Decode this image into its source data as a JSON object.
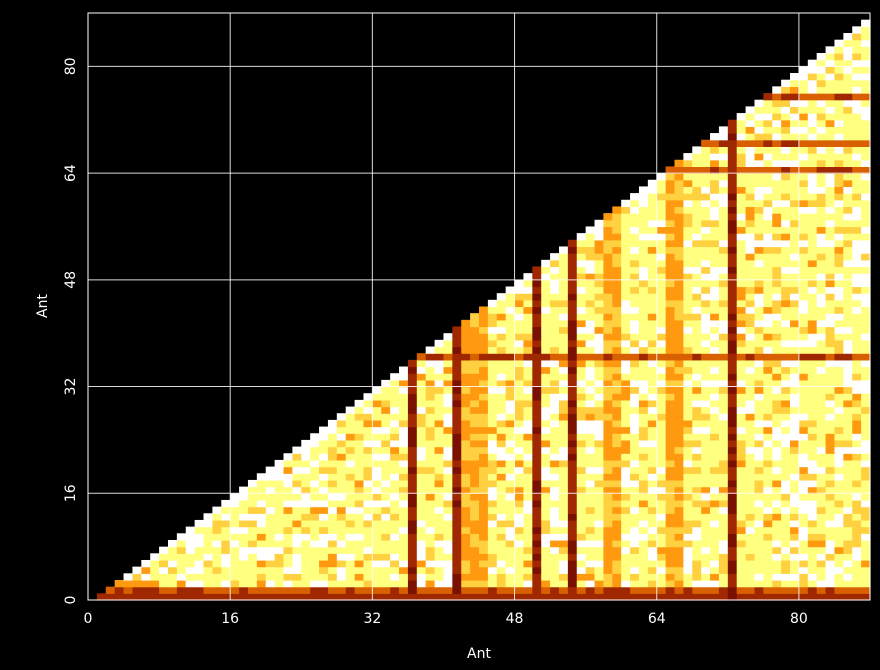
{
  "chart_data": {
    "type": "heatmap",
    "title": "",
    "xlabel": "Ant",
    "ylabel": "Ant",
    "xlim": [
      0,
      88
    ],
    "ylim": [
      0,
      88
    ],
    "xticks": [
      0,
      16,
      32,
      48,
      64,
      80
    ],
    "yticks": [
      0,
      16,
      32,
      48,
      64,
      80
    ],
    "tick_labels_x": [
      "0",
      "16",
      "32",
      "48",
      "64",
      "80"
    ],
    "tick_labels_y": [
      "0",
      "16",
      "32",
      "48",
      "64",
      "80"
    ],
    "grid": true,
    "triangle": "lower-right (x > y)",
    "colormap": [
      "#ffffff",
      "#ffff80",
      "#ffd040",
      "#ff9a10",
      "#d86000",
      "#a02800",
      "#7a1000"
    ],
    "low_value_antennas": [
      1,
      36,
      41,
      50,
      54,
      72
    ],
    "low_value_rows": [
      0,
      1,
      36,
      64,
      68,
      75
    ],
    "medium_value_antennas": [
      42,
      43,
      44,
      58,
      59,
      65,
      66
    ],
    "background_color": "#000000",
    "grid_color": "#ffffff"
  }
}
